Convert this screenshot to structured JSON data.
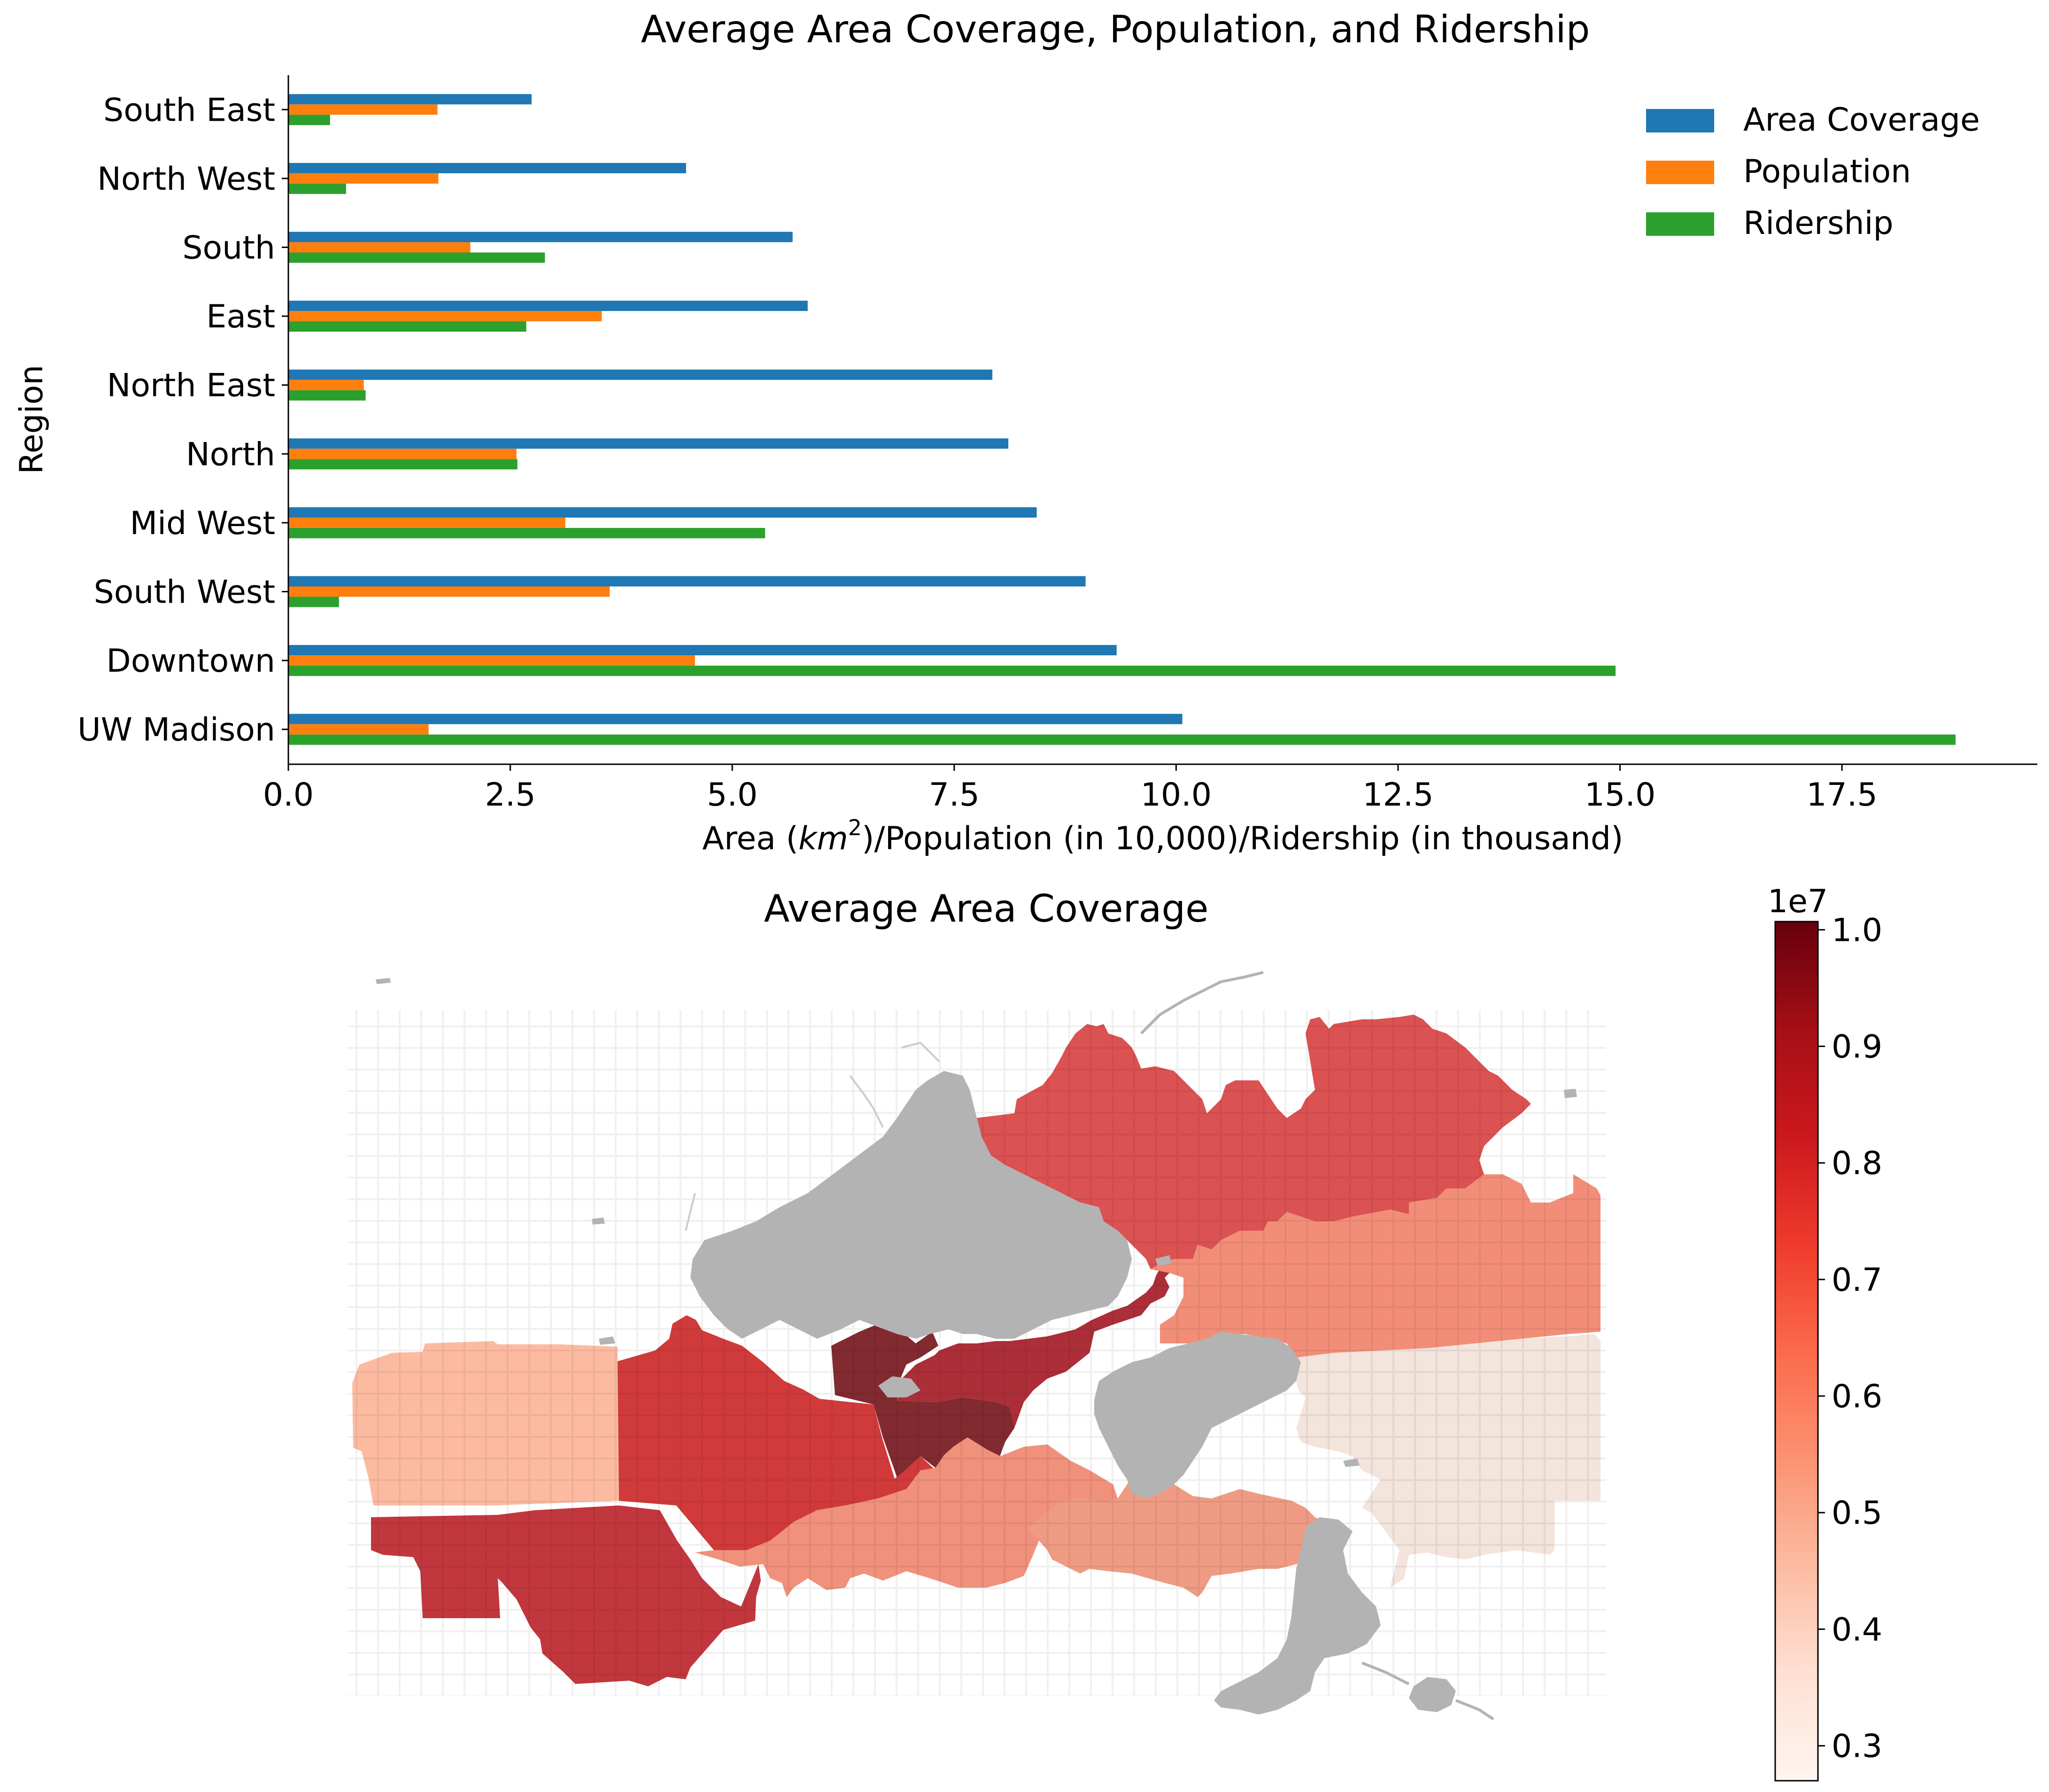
{
  "colors": {
    "area": "#1f77b4",
    "population": "#ff7f0e",
    "ridership": "#2ca02c",
    "lake": "#b3b3b3",
    "roads": "#d9d9d9"
  },
  "chart_data": [
    {
      "type": "bar",
      "orientation": "horizontal",
      "title": "Average Area Coverage, Population, and Ridership",
      "xlabel_parts": [
        "Area (",
        "km",
        "2",
        ")/Population (in 10,000)/Ridership (in thousand)"
      ],
      "ylabel": "Region",
      "xlim": [
        0,
        19.7
      ],
      "xticks": [
        0.0,
        2.5,
        5.0,
        7.5,
        10.0,
        12.5,
        15.0,
        17.5
      ],
      "xtick_labels": [
        "0.0",
        "2.5",
        "5.0",
        "7.5",
        "10.0",
        "12.5",
        "15.0",
        "17.5"
      ],
      "categories": [
        "UW Madison",
        "Downtown",
        "South West",
        "Mid West",
        "North",
        "North East",
        "East",
        "South",
        "North West",
        "South East"
      ],
      "series": [
        {
          "name": "Area Coverage",
          "color": "#1f77b4",
          "values": [
            10.07,
            9.33,
            8.98,
            8.43,
            8.11,
            7.93,
            5.85,
            5.68,
            4.48,
            2.74
          ]
        },
        {
          "name": "Population",
          "color": "#ff7f0e",
          "values": [
            1.58,
            4.58,
            3.62,
            3.12,
            2.57,
            0.85,
            3.53,
            2.05,
            1.69,
            1.68
          ]
        },
        {
          "name": "Ridership",
          "color": "#2ca02c",
          "values": [
            18.78,
            14.95,
            0.57,
            5.37,
            2.58,
            0.87,
            2.68,
            2.89,
            0.65,
            0.47
          ]
        }
      ],
      "legend_position": "top-right",
      "grid": false
    },
    {
      "type": "choropleth-map",
      "title": "Average Area Coverage",
      "colorbar": {
        "min": 2700000,
        "max": 10070000,
        "offset_label": "1e7",
        "ticks": [
          0.3,
          0.4,
          0.5,
          0.6,
          0.7,
          0.8,
          0.9,
          1.0
        ],
        "tick_labels": [
          "0.3",
          "0.4",
          "0.5",
          "0.6",
          "0.7",
          "0.8",
          "0.9",
          "1.0"
        ],
        "colormap": "Reds"
      },
      "regions": [
        {
          "name": "UW Madison",
          "value": 10070000
        },
        {
          "name": "Downtown",
          "value": 9330000
        },
        {
          "name": "South West",
          "value": 8980000
        },
        {
          "name": "Mid West",
          "value": 8430000
        },
        {
          "name": "North",
          "value": 8110000
        },
        {
          "name": "North East",
          "value": 7930000
        },
        {
          "name": "East",
          "value": 5850000
        },
        {
          "name": "South",
          "value": 5680000
        },
        {
          "name": "North West",
          "value": 4480000
        },
        {
          "name": "South East",
          "value": 2740000
        }
      ]
    }
  ]
}
